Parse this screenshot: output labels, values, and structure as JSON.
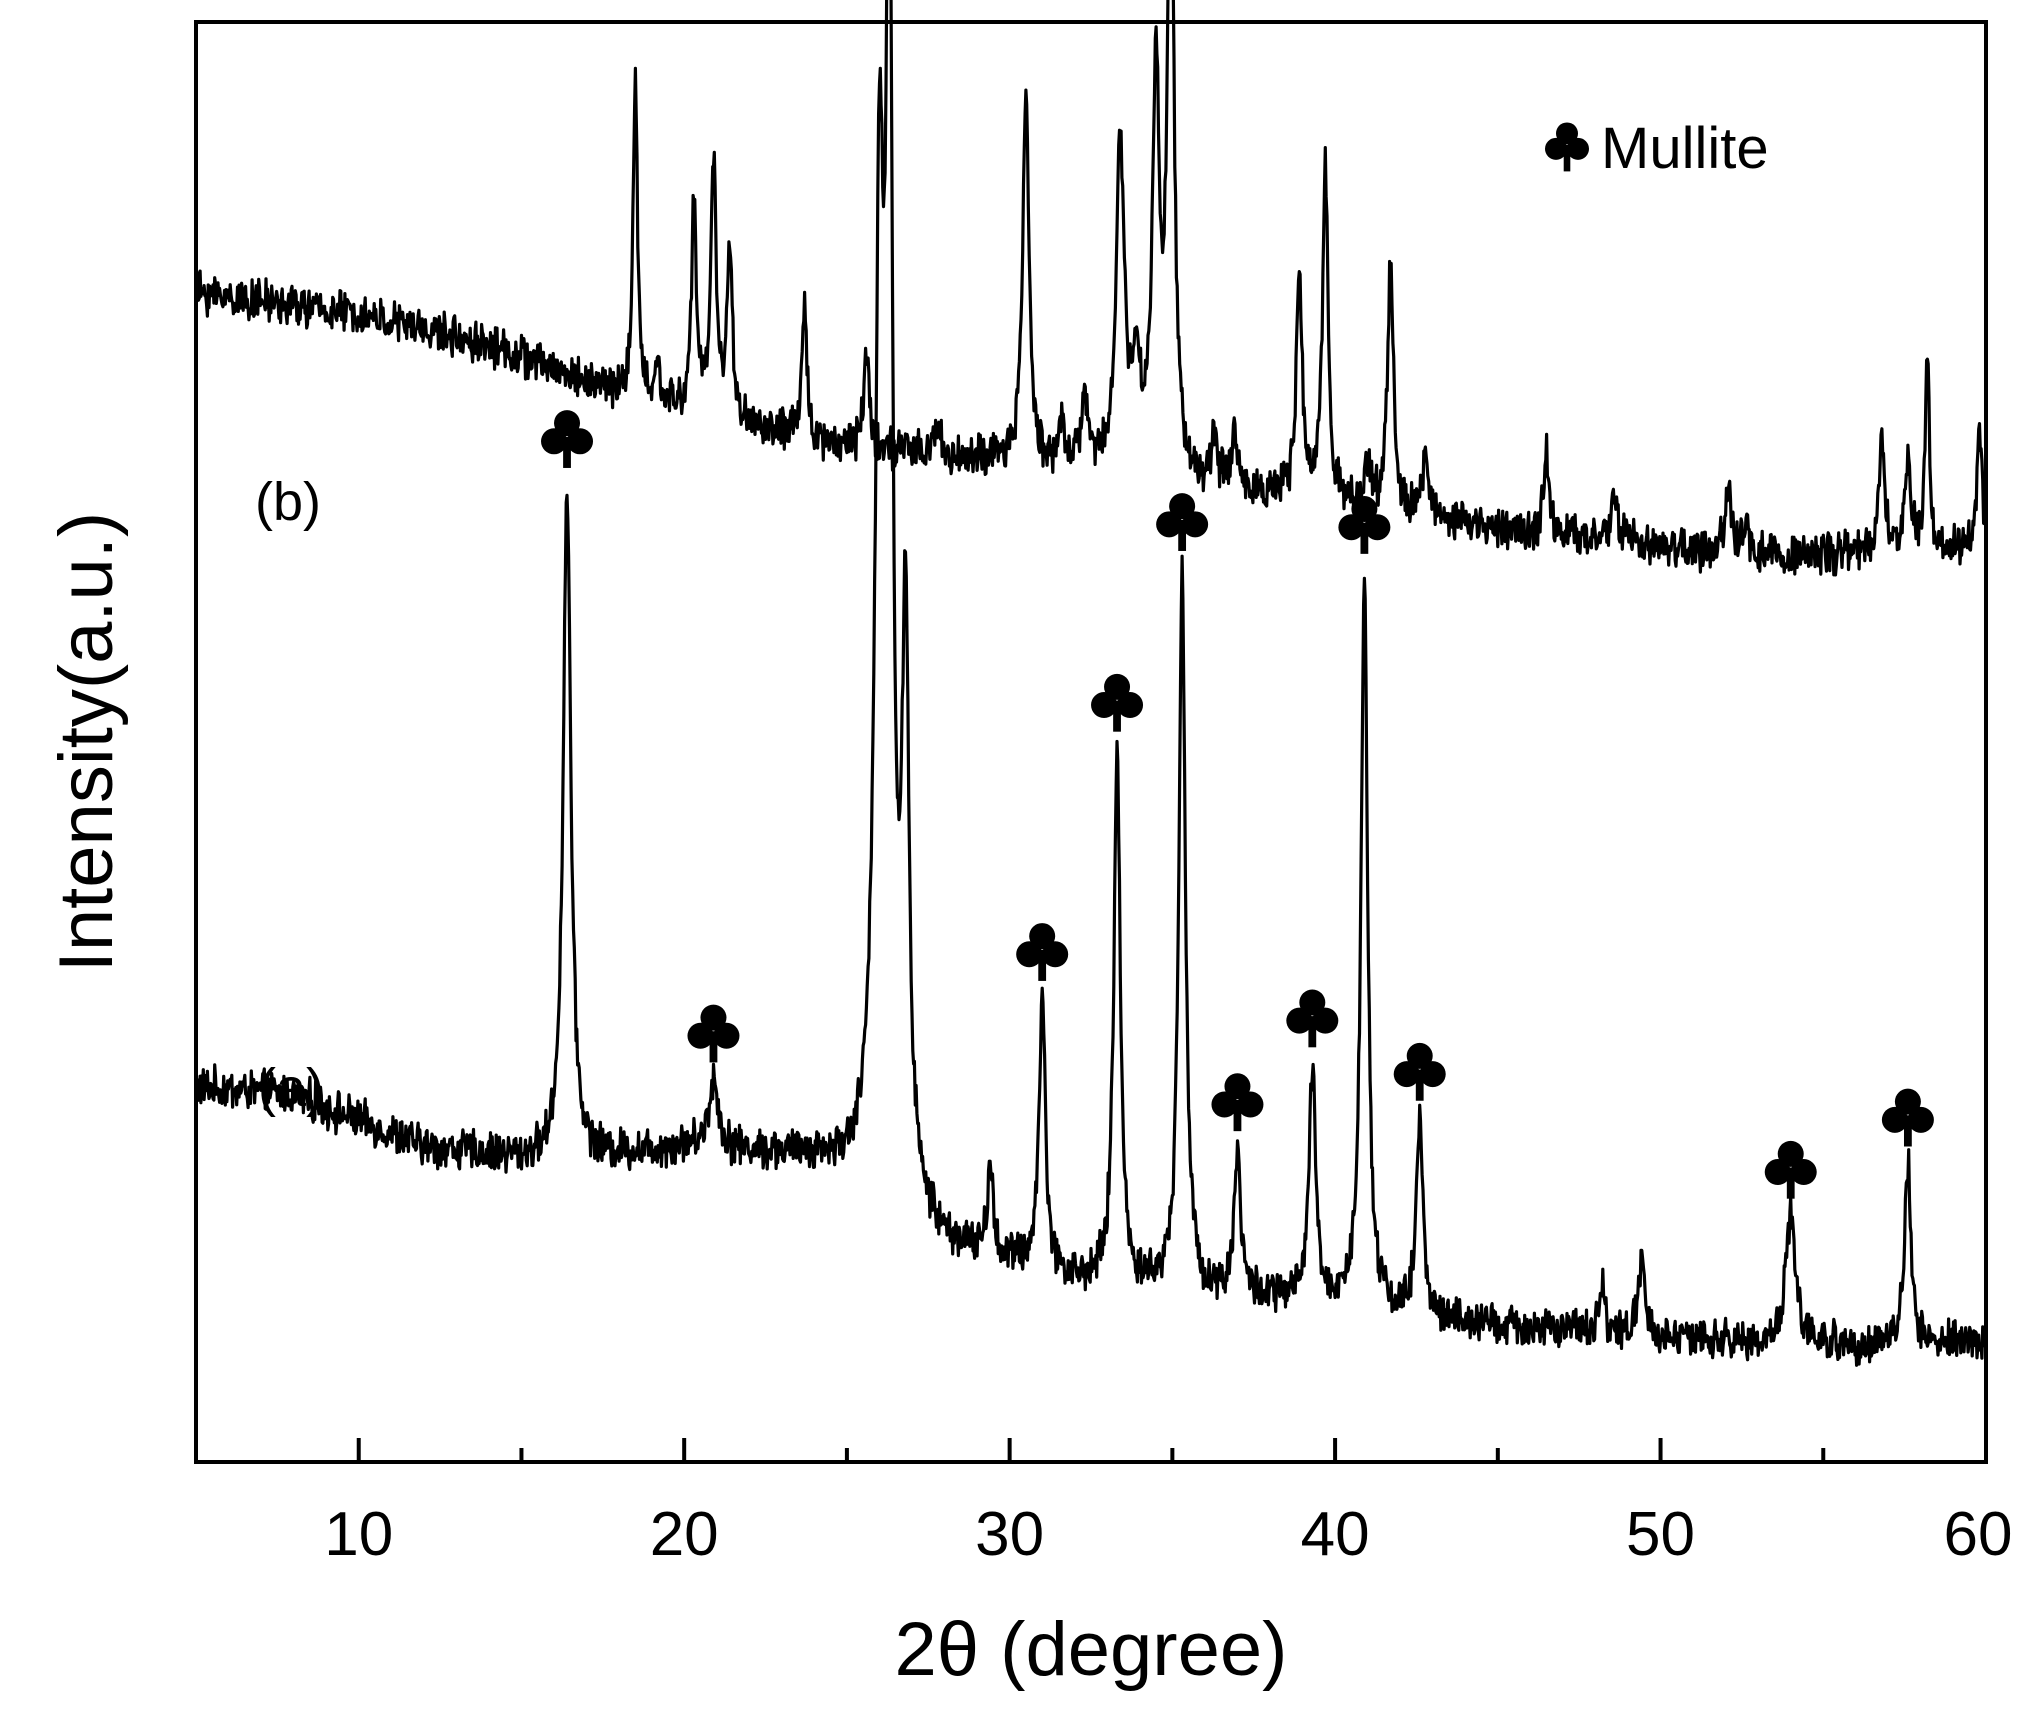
{
  "chart_data": {
    "type": "line",
    "title": "",
    "xlabel": "2θ (degree)",
    "ylabel": "Intensity(a.u.)",
    "xlim": [
      5,
      60
    ],
    "xticks": [
      10,
      20,
      30,
      40,
      50,
      60
    ],
    "grid": false,
    "legend": {
      "placement": "top-right",
      "entries": [
        {
          "marker": "club",
          "label": "Mullite"
        }
      ]
    },
    "series": [
      {
        "name": "(a)",
        "baseline": [
          [
            5,
            250
          ],
          [
            8,
            245
          ],
          [
            12,
            210
          ],
          [
            16,
            200
          ],
          [
            20,
            210
          ],
          [
            24,
            203
          ],
          [
            26,
            185
          ],
          [
            28,
            145
          ],
          [
            32,
            120
          ],
          [
            36,
            112
          ],
          [
            40,
            105
          ],
          [
            44,
            92
          ],
          [
            48,
            86
          ],
          [
            52,
            80
          ],
          [
            56,
            78
          ],
          [
            60,
            80
          ]
        ],
        "peaks": [
          {
            "x": 16.4,
            "h": 450,
            "w": 0.14,
            "mullite": true
          },
          {
            "x": 20.9,
            "h": 45,
            "w": 0.18,
            "mullite": true
          },
          {
            "x": 26.0,
            "h": 620,
            "w": 0.16,
            "mullite": true
          },
          {
            "x": 26.3,
            "h": 820,
            "w": 0.12,
            "mullite": false
          },
          {
            "x": 26.8,
            "h": 380,
            "w": 0.12,
            "mullite": false
          },
          {
            "x": 29.4,
            "h": 60,
            "w": 0.1,
            "mullite": false
          },
          {
            "x": 31.0,
            "h": 180,
            "w": 0.12,
            "mullite": true
          },
          {
            "x": 33.3,
            "h": 355,
            "w": 0.12,
            "mullite": true
          },
          {
            "x": 35.3,
            "h": 480,
            "w": 0.12,
            "mullite": true
          },
          {
            "x": 37.0,
            "h": 95,
            "w": 0.12,
            "mullite": true
          },
          {
            "x": 39.3,
            "h": 155,
            "w": 0.12,
            "mullite": true
          },
          {
            "x": 40.9,
            "h": 490,
            "w": 0.12,
            "mullite": true
          },
          {
            "x": 42.6,
            "h": 130,
            "w": 0.12,
            "mullite": true
          },
          {
            "x": 48.2,
            "h": 35,
            "w": 0.1,
            "mullite": false
          },
          {
            "x": 49.4,
            "h": 50,
            "w": 0.12,
            "mullite": false
          },
          {
            "x": 54.0,
            "h": 85,
            "w": 0.18,
            "mullite": true
          },
          {
            "x": 57.6,
            "h": 120,
            "w": 0.12,
            "mullite": true
          }
        ]
      },
      {
        "name": "(b)",
        "baseline": [
          [
            5,
            780
          ],
          [
            10,
            765
          ],
          [
            14,
            745
          ],
          [
            17,
            720
          ],
          [
            20,
            700
          ],
          [
            24,
            680
          ],
          [
            28,
            670
          ],
          [
            30,
            665
          ],
          [
            33,
            660
          ],
          [
            36,
            650
          ],
          [
            40,
            640
          ],
          [
            44,
            625
          ],
          [
            48,
            615
          ],
          [
            52,
            605
          ],
          [
            56,
            605
          ],
          [
            60,
            610
          ]
        ],
        "peaks": [
          {
            "x": 18.5,
            "h": 210,
            "w": 0.08
          },
          {
            "x": 19.2,
            "h": 25,
            "w": 0.08
          },
          {
            "x": 20.3,
            "h": 140,
            "w": 0.09
          },
          {
            "x": 20.9,
            "h": 170,
            "w": 0.1
          },
          {
            "x": 21.4,
            "h": 110,
            "w": 0.1
          },
          {
            "x": 23.7,
            "h": 90,
            "w": 0.09
          },
          {
            "x": 25.6,
            "h": 65,
            "w": 0.1
          },
          {
            "x": 27.8,
            "h": 25,
            "w": 0.08
          },
          {
            "x": 30.5,
            "h": 245,
            "w": 0.12
          },
          {
            "x": 31.6,
            "h": 30,
            "w": 0.1
          },
          {
            "x": 32.3,
            "h": 45,
            "w": 0.12
          },
          {
            "x": 33.4,
            "h": 215,
            "w": 0.15
          },
          {
            "x": 33.9,
            "h": 70,
            "w": 0.15
          },
          {
            "x": 34.5,
            "h": 260,
            "w": 0.13
          },
          {
            "x": 34.95,
            "h": 470,
            "w": 0.11
          },
          {
            "x": 36.3,
            "h": 30,
            "w": 0.1
          },
          {
            "x": 36.9,
            "h": 40,
            "w": 0.1
          },
          {
            "x": 38.9,
            "h": 150,
            "w": 0.1
          },
          {
            "x": 39.7,
            "h": 225,
            "w": 0.1
          },
          {
            "x": 41.0,
            "h": 25,
            "w": 0.1
          },
          {
            "x": 41.7,
            "h": 165,
            "w": 0.11
          },
          {
            "x": 42.8,
            "h": 40,
            "w": 0.12
          },
          {
            "x": 46.5,
            "h": 55,
            "w": 0.1
          },
          {
            "x": 48.6,
            "h": 35,
            "w": 0.1
          },
          {
            "x": 52.1,
            "h": 45,
            "w": 0.12
          },
          {
            "x": 52.6,
            "h": 20,
            "w": 0.1
          },
          {
            "x": 56.8,
            "h": 75,
            "w": 0.1
          },
          {
            "x": 57.6,
            "h": 65,
            "w": 0.1
          },
          {
            "x": 58.2,
            "h": 125,
            "w": 0.08
          },
          {
            "x": 59.8,
            "h": 85,
            "w": 0.08
          }
        ]
      }
    ]
  }
}
